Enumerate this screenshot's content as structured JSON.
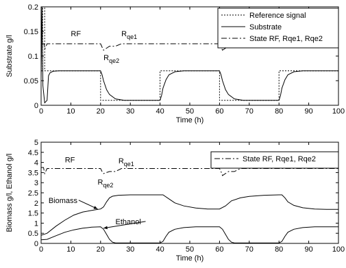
{
  "chart_data": [
    {
      "type": "line",
      "xlabel": "Time (h)",
      "ylabel": "Substrate g/l",
      "xlim": [
        0,
        100
      ],
      "ylim": [
        0,
        0.2
      ],
      "xticks": [
        0,
        10,
        20,
        30,
        40,
        50,
        60,
        70,
        80,
        90,
        100
      ],
      "yticks": [
        0,
        0.05,
        0.1,
        0.15,
        0.2
      ],
      "ytick_labels": [
        "0",
        "0.05",
        "0.1",
        "0.15",
        "0.2"
      ],
      "grid": false,
      "legend": {
        "placement": "top-right",
        "entries": [
          "Reference signal",
          "Substrate",
          "State RF, Rqe1, Rqe2"
        ]
      },
      "annotations": [
        {
          "text": "RF",
          "x": 10,
          "y": 0.14
        },
        {
          "text": "R",
          "sub": "qe1",
          "x": 27,
          "y": 0.14
        },
        {
          "text": "R",
          "sub": "qe2",
          "x": 21,
          "y": 0.092
        }
      ],
      "series": [
        {
          "name": "Reference signal",
          "style": "dotted",
          "x": [
            0,
            0.5,
            0.5,
            1.2,
            1.2,
            20,
            20,
            40,
            40,
            60,
            60,
            80,
            80,
            100
          ],
          "y": [
            0.07,
            0.07,
            0.2,
            0.2,
            0.07,
            0.07,
            0.01,
            0.01,
            0.07,
            0.07,
            0.01,
            0.01,
            0.07,
            0.07
          ]
        },
        {
          "name": "Substrate",
          "style": "solid",
          "x": [
            0,
            0.3,
            0.6,
            1.2,
            2,
            2.5,
            3,
            4,
            6,
            20,
            20.5,
            21,
            22,
            23,
            25,
            28,
            40,
            40.5,
            41,
            42,
            43,
            45,
            48,
            60,
            60.5,
            61,
            62,
            63,
            65,
            68,
            80,
            80.5,
            81,
            82,
            83,
            85,
            88,
            100
          ],
          "y": [
            0.05,
            0.2,
            0.04,
            0.005,
            0.01,
            0.06,
            0.066,
            0.069,
            0.07,
            0.07,
            0.062,
            0.05,
            0.032,
            0.022,
            0.013,
            0.01,
            0.01,
            0.02,
            0.035,
            0.052,
            0.062,
            0.068,
            0.07,
            0.07,
            0.062,
            0.05,
            0.032,
            0.022,
            0.013,
            0.01,
            0.01,
            0.02,
            0.035,
            0.052,
            0.062,
            0.068,
            0.07,
            0.07
          ]
        },
        {
          "name": "State RF, Rqe1, Rqe2",
          "style": "dashdot",
          "x": [
            0,
            1,
            1.3,
            2,
            20,
            20.5,
            21,
            23,
            25,
            27,
            60,
            60.5,
            61,
            63,
            65,
            67,
            100
          ],
          "y": [
            0.125,
            0.125,
            0.115,
            0.125,
            0.125,
            0.118,
            0.112,
            0.12,
            0.12,
            0.125,
            0.125,
            0.118,
            0.112,
            0.12,
            0.12,
            0.125,
            0.125
          ]
        }
      ]
    },
    {
      "type": "line",
      "xlabel": "Time (h)",
      "ylabel": "Biomass g/l,  Ethanol g/l",
      "xlim": [
        0,
        100
      ],
      "ylim": [
        0,
        5
      ],
      "xticks": [
        0,
        10,
        20,
        30,
        40,
        50,
        60,
        70,
        80,
        90,
        100
      ],
      "yticks": [
        0,
        0.5,
        1,
        1.5,
        2,
        2.5,
        3,
        3.5,
        4,
        4.5,
        5
      ],
      "ytick_labels": [
        "0",
        "0.5",
        "1",
        "1.5",
        "2",
        "2.5",
        "3",
        "3.5",
        "4",
        "4.5",
        "5"
      ],
      "grid": false,
      "legend": {
        "placement": "top-right",
        "entries": [
          "State RF, Rqe1, Rqe2"
        ]
      },
      "annotations": [
        {
          "text": "RF",
          "x": 8,
          "y": 4.0
        },
        {
          "text": "R",
          "sub": "qe1",
          "x": 26,
          "y": 3.95
        },
        {
          "text": "R",
          "sub": "qe2",
          "x": 19,
          "y": 2.9
        },
        {
          "text": "Biomass",
          "x": 2.5,
          "y": 2.0,
          "arrow_to": [
            19,
            1.7
          ]
        },
        {
          "text": "Ethanol",
          "x": 25,
          "y": 0.95,
          "arrow_to": [
            21,
            0.75
          ]
        }
      ],
      "series": [
        {
          "name": "Biomass",
          "style": "solid",
          "x": [
            0,
            2,
            5,
            8,
            11,
            14,
            17,
            20,
            21,
            22,
            23,
            24,
            26,
            30,
            41,
            43,
            45,
            48,
            52,
            56,
            60,
            62,
            64,
            67,
            70,
            75,
            80,
            81,
            82,
            83,
            85,
            88,
            92,
            96,
            100
          ],
          "y": [
            0.4,
            0.5,
            0.85,
            1.15,
            1.4,
            1.55,
            1.63,
            1.7,
            1.8,
            2.05,
            2.25,
            2.33,
            2.38,
            2.4,
            2.4,
            2.2,
            2.0,
            1.85,
            1.75,
            1.7,
            1.7,
            1.85,
            2.1,
            2.25,
            2.32,
            2.38,
            2.4,
            2.4,
            2.25,
            2.05,
            1.88,
            1.76,
            1.7,
            1.68,
            1.68
          ]
        },
        {
          "name": "Ethanol",
          "style": "solid",
          "x": [
            0,
            2,
            5,
            8,
            11,
            14,
            17,
            20,
            21,
            22,
            23,
            24,
            25,
            30,
            40,
            41,
            42,
            43,
            45,
            48,
            52,
            56,
            60,
            61,
            62,
            63,
            64,
            65,
            70,
            80,
            81,
            82,
            83,
            85,
            88,
            92,
            96,
            100
          ],
          "y": [
            0.18,
            0.2,
            0.38,
            0.55,
            0.67,
            0.75,
            0.8,
            0.82,
            0.7,
            0.45,
            0.2,
            0.06,
            0.02,
            0.02,
            0.02,
            0.1,
            0.35,
            0.55,
            0.7,
            0.78,
            0.82,
            0.82,
            0.82,
            0.7,
            0.45,
            0.2,
            0.06,
            0.02,
            0.02,
            0.02,
            0.1,
            0.35,
            0.55,
            0.7,
            0.78,
            0.82,
            0.82,
            0.82
          ]
        },
        {
          "name": "State RF, Rqe1, Rqe2",
          "style": "dashdot",
          "x": [
            0,
            0.8,
            1.2,
            2,
            20,
            20.5,
            21,
            23,
            25,
            27,
            60,
            60.5,
            61,
            63,
            65,
            67,
            100
          ],
          "y": [
            3.75,
            3.75,
            3.45,
            3.7,
            3.7,
            3.55,
            3.45,
            3.55,
            3.55,
            3.7,
            3.7,
            3.55,
            3.35,
            3.55,
            3.55,
            3.7,
            3.7
          ]
        }
      ]
    }
  ]
}
